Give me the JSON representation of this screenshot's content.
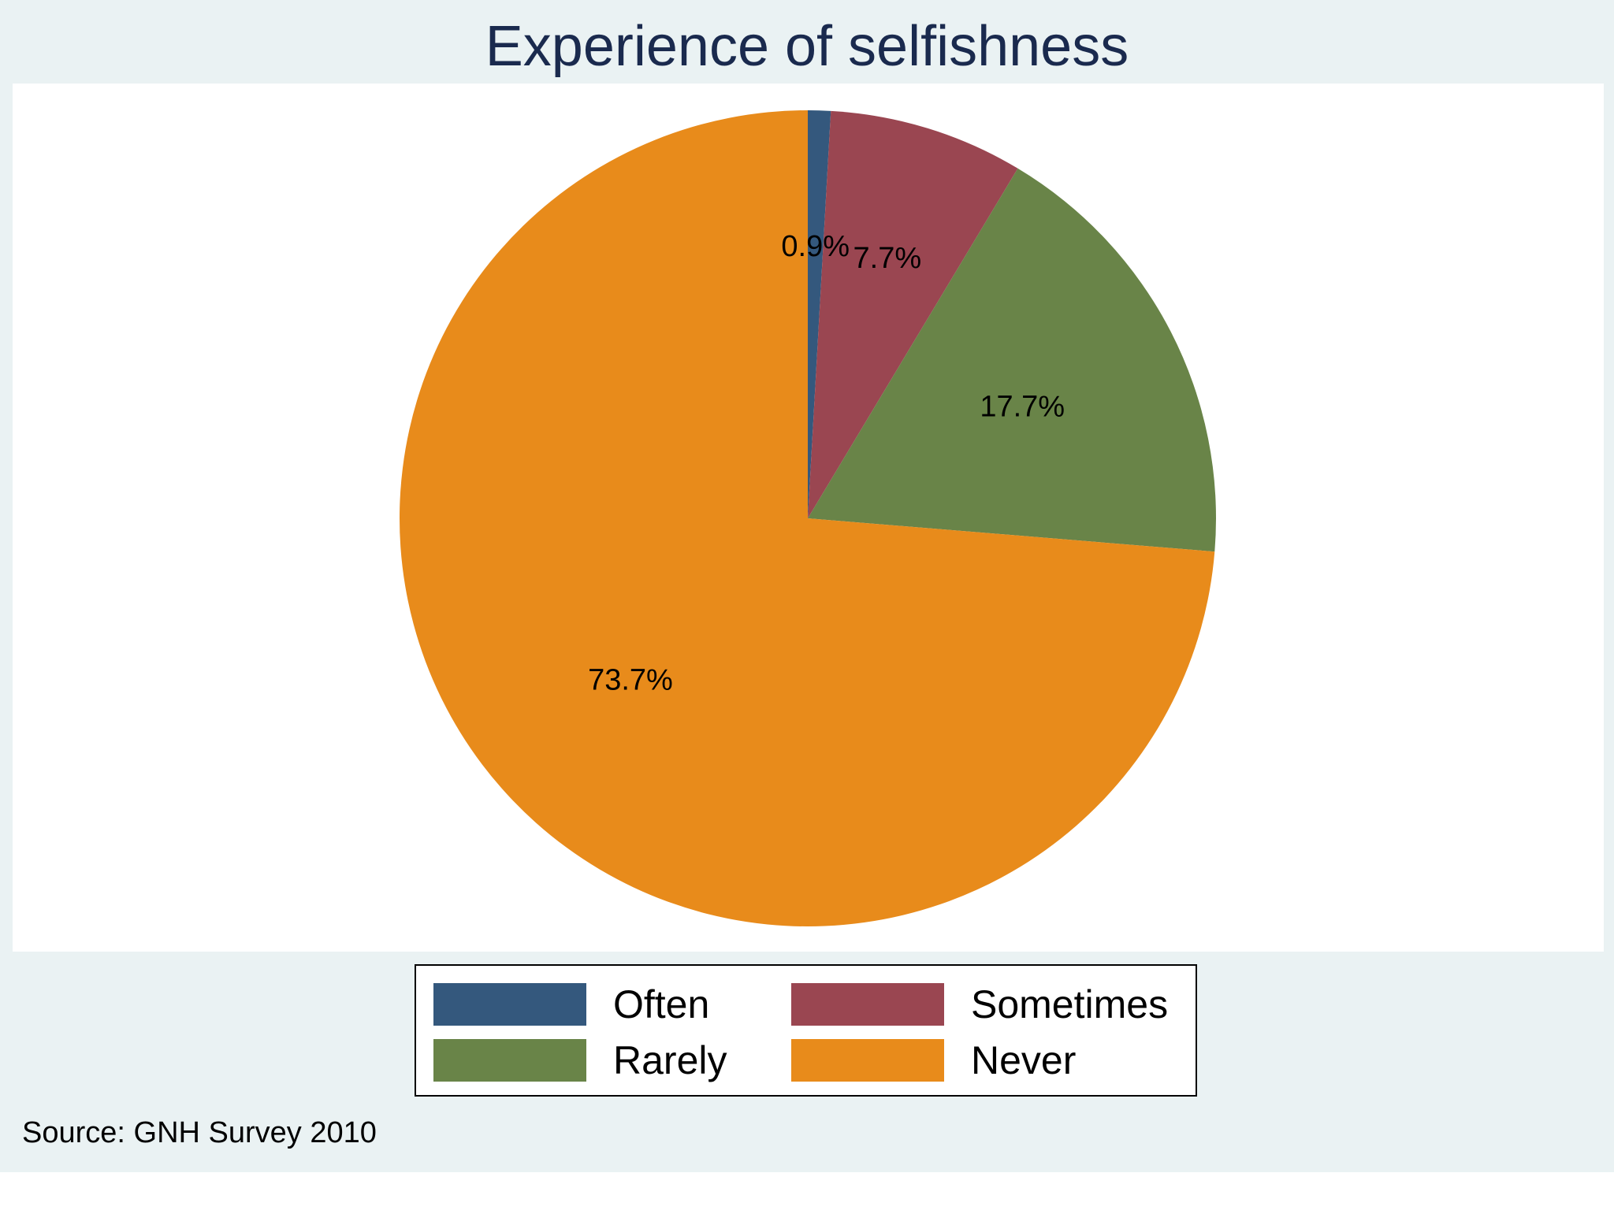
{
  "chart_data": {
    "type": "pie",
    "title": "Experience of selfishness",
    "slices": [
      {
        "name": "Often",
        "value": 0.9,
        "label": "0.9%",
        "color": "#34587d"
      },
      {
        "name": "Sometimes",
        "value": 7.7,
        "label": "7.7%",
        "color": "#9a4651"
      },
      {
        "name": "Rarely",
        "value": 17.7,
        "label": "17.7%",
        "color": "#698448"
      },
      {
        "name": "Never",
        "value": 73.7,
        "label": "73.7%",
        "color": "#e88b1b"
      }
    ],
    "start_angle": "12 o'clock",
    "direction": "clockwise",
    "legend": {
      "placement": "bottom",
      "columns": 2,
      "entries": [
        "Often",
        "Sometimes",
        "Rarely",
        "Never"
      ]
    },
    "note": "Source: GNH Survey 2010"
  },
  "colors": {
    "background": "#eaf2f3",
    "plot_area": "#ffffff",
    "title": "#1a2a4e"
  }
}
